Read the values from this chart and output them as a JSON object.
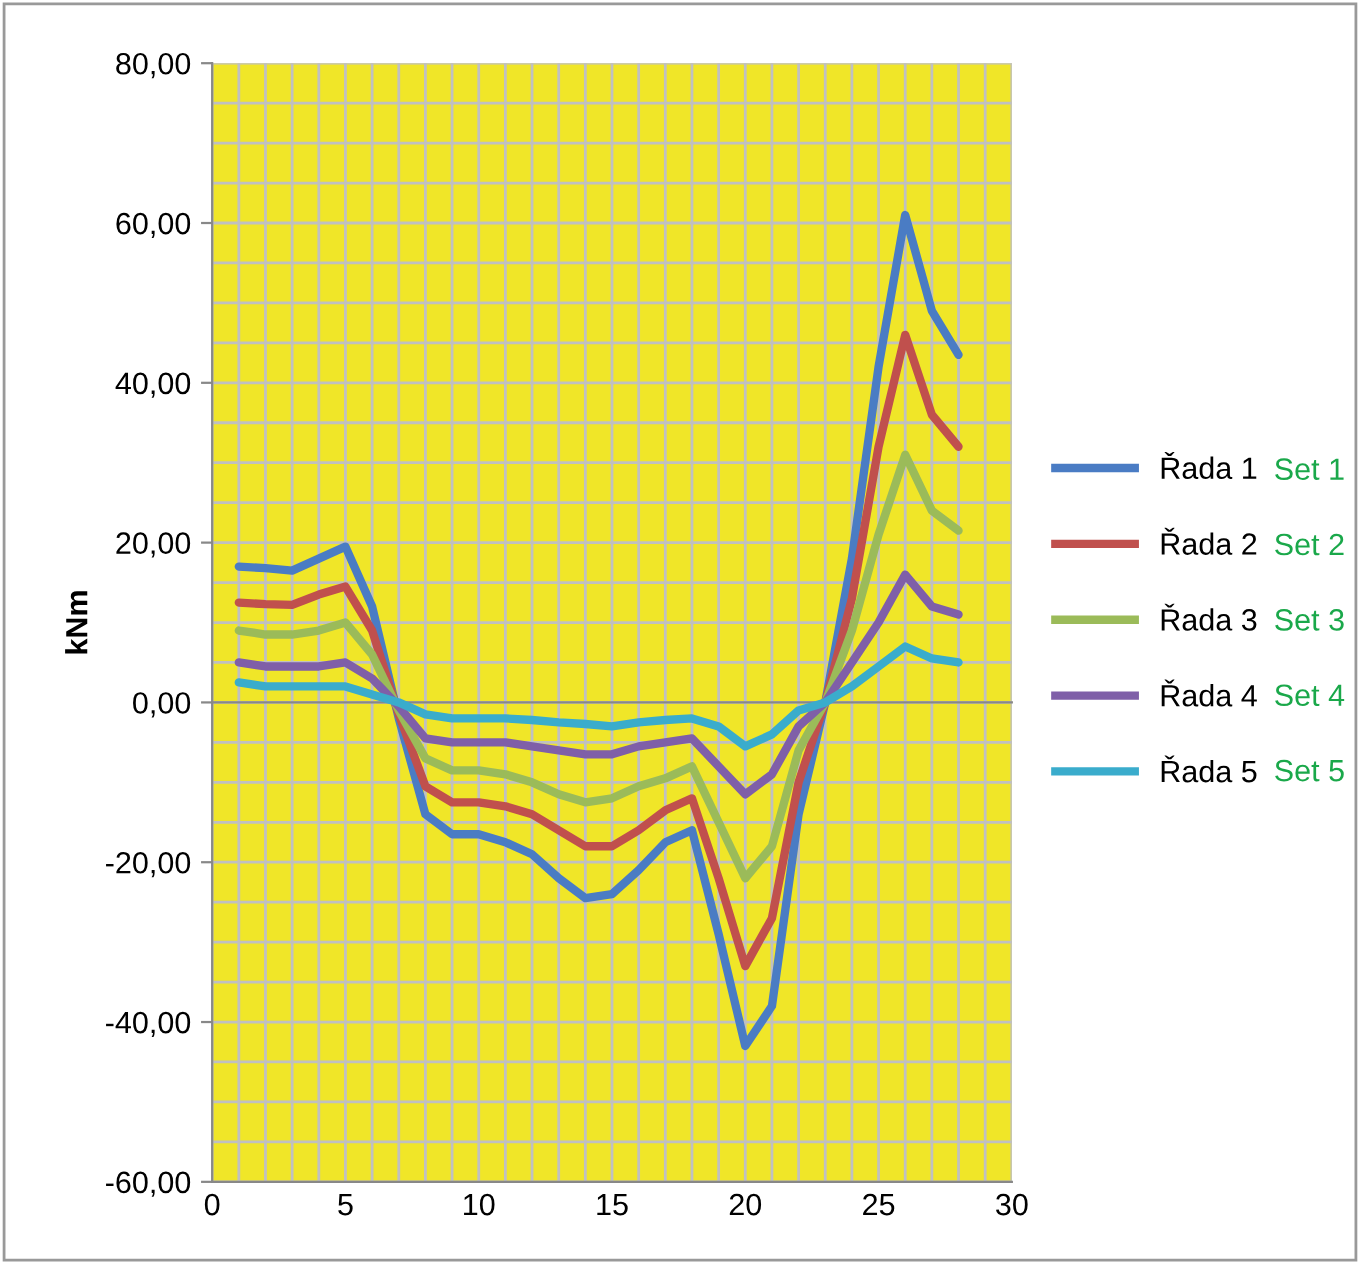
{
  "chart_data": {
    "type": "line",
    "ylabel": "kNm",
    "x": [
      1,
      2,
      3,
      4,
      5,
      6,
      7,
      8,
      9,
      10,
      11,
      12,
      13,
      14,
      15,
      16,
      17,
      18,
      19,
      20,
      21,
      22,
      23,
      24,
      25,
      26,
      27,
      28
    ],
    "series": [
      {
        "name": "Řada 1",
        "color": "#4a7cc4",
        "values": [
          17,
          16.8,
          16.5,
          18,
          19.5,
          12,
          -2,
          -14,
          -16.5,
          -16.5,
          -17.5,
          -19,
          -22,
          -24.5,
          -24,
          -21,
          -17.5,
          -16,
          -29,
          -43,
          -38,
          -14,
          0,
          18,
          42,
          61,
          49,
          43.5
        ]
      },
      {
        "name": "Řada 2",
        "color": "#c0504d",
        "values": [
          12.5,
          12.3,
          12.2,
          13.5,
          14.5,
          9,
          -1.5,
          -10.5,
          -12.5,
          -12.5,
          -13,
          -14,
          -16,
          -18,
          -18,
          -16,
          -13.5,
          -12,
          -22,
          -33,
          -27,
          -10,
          0,
          13,
          32,
          46,
          36,
          32
        ]
      },
      {
        "name": "Řada 3",
        "color": "#9bbb59",
        "values": [
          9,
          8.5,
          8.5,
          9,
          10,
          6,
          -1,
          -7,
          -8.5,
          -8.5,
          -9,
          -10,
          -11.5,
          -12.5,
          -12,
          -10.5,
          -9.5,
          -8,
          -15,
          -22,
          -18,
          -6,
          0,
          9,
          21,
          31,
          24,
          21.5
        ]
      },
      {
        "name": "Řada 4",
        "color": "#7f5fa8",
        "values": [
          5,
          4.5,
          4.5,
          4.5,
          5,
          3,
          -0.5,
          -4.5,
          -5,
          -5,
          -5,
          -5.5,
          -6,
          -6.5,
          -6.5,
          -5.5,
          -5,
          -4.5,
          -8,
          -11.5,
          -9,
          -3,
          0,
          5,
          10,
          16,
          12,
          11
        ]
      },
      {
        "name": "Řada 5",
        "color": "#3aaccc",
        "values": [
          2.5,
          2,
          2,
          2,
          2,
          1,
          0,
          -1.5,
          -2,
          -2,
          -2,
          -2.2,
          -2.5,
          -2.7,
          -3,
          -2.5,
          -2.2,
          -2,
          -3,
          -5.5,
          -4,
          -1,
          0,
          2,
          4.5,
          7,
          5.5,
          5
        ]
      }
    ],
    "xlim": [
      0,
      30
    ],
    "xticks": [
      0,
      5,
      10,
      15,
      20,
      25,
      30
    ],
    "ylim": [
      -60,
      80
    ],
    "yticks": [
      {
        "value": -60,
        "label": "-60,00"
      },
      {
        "value": -40,
        "label": "-40,00"
      },
      {
        "value": -20,
        "label": "-20,00"
      },
      {
        "value": 0,
        "label": "0,00"
      },
      {
        "value": 20,
        "label": "20,00"
      },
      {
        "value": 40,
        "label": "40,00"
      },
      {
        "value": 60,
        "label": "60,00"
      },
      {
        "value": 80,
        "label": "80,00"
      }
    ],
    "grid": true,
    "legend": "right",
    "line_style": "solid",
    "marker": "none",
    "annotations": [
      "Set 1",
      "Set 2",
      "Set 3",
      "Set 4",
      "Set 5"
    ]
  }
}
